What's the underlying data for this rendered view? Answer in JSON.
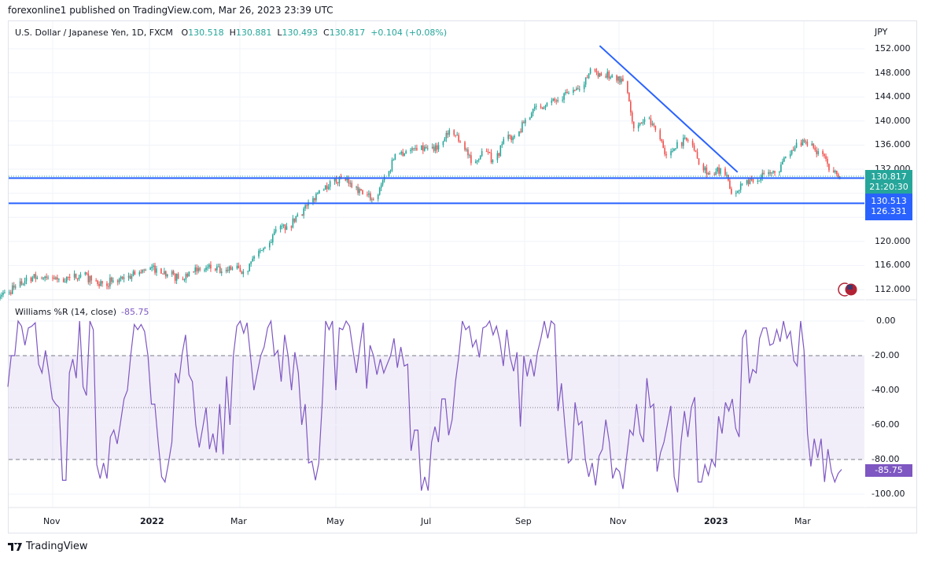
{
  "header": {
    "published": "forexonline1 published on TradingView.com, Mar 26, 2023 23:39 UTC"
  },
  "legend": {
    "symbol": "U.S. Dollar / Japanese Yen, 1D, FXCM",
    "o_label": "O",
    "o": "130.518",
    "h_label": "H",
    "h": "130.881",
    "l_label": "L",
    "l": "130.493",
    "c_label": "C",
    "c": "130.817",
    "change": "+0.104 (+0.08%)"
  },
  "price_axis": {
    "currency": "JPY",
    "ticks": [
      "152.000",
      "148.000",
      "144.000",
      "140.000",
      "136.000",
      "132.000",
      "120.000",
      "116.000",
      "112.000"
    ]
  },
  "tags": {
    "last_price": "130.817",
    "countdown": "21:20:30",
    "line1": "130.513",
    "line2": "126.331"
  },
  "indicator": {
    "name": "Williams %R (14, close)",
    "value": "-85.75",
    "ticks": [
      "0.00",
      "-20.00",
      "-40.00",
      "-60.00",
      "-80.00",
      "-100.00"
    ]
  },
  "time_axis": [
    "Nov",
    "2022",
    "Mar",
    "May",
    "Jul",
    "Sep",
    "Nov",
    "2023",
    "Mar"
  ],
  "footer": {
    "brand": "TradingView"
  },
  "colors": {
    "up": "#26a69a",
    "down": "#ef5350",
    "lines": "#2962ff",
    "indicator": "#7e57c2"
  },
  "chart_data": [
    {
      "type": "candlestick",
      "title": "U.S. Dollar / Japanese Yen, 1D, FXCM",
      "ylabel": "JPY",
      "ylim": [
        110,
        154
      ],
      "horizontal_lines": [
        130.513,
        126.331
      ],
      "trendline": {
        "from": [
          "2022-10-20",
          152.5
        ],
        "to": [
          "2023-01-17",
          131.5
        ]
      },
      "weekly_close": {
        "dates": [
          "2021-10-01",
          "2021-10-08",
          "2021-10-15",
          "2021-10-22",
          "2021-10-29",
          "2021-11-05",
          "2021-11-12",
          "2021-11-19",
          "2021-11-26",
          "2021-12-03",
          "2021-12-10",
          "2021-12-17",
          "2021-12-24",
          "2021-12-31",
          "2022-01-07",
          "2022-01-14",
          "2022-01-21",
          "2022-01-28",
          "2022-02-04",
          "2022-02-11",
          "2022-02-18",
          "2022-02-25",
          "2022-03-04",
          "2022-03-11",
          "2022-03-18",
          "2022-03-25",
          "2022-04-01",
          "2022-04-08",
          "2022-04-15",
          "2022-04-22",
          "2022-04-29",
          "2022-05-06",
          "2022-05-13",
          "2022-05-20",
          "2022-05-27",
          "2022-06-03",
          "2022-06-10",
          "2022-06-17",
          "2022-06-24",
          "2022-07-01",
          "2022-07-08",
          "2022-07-15",
          "2022-07-22",
          "2022-07-29",
          "2022-08-05",
          "2022-08-12",
          "2022-08-19",
          "2022-08-26",
          "2022-09-02",
          "2022-09-09",
          "2022-09-16",
          "2022-09-23",
          "2022-09-30",
          "2022-10-07",
          "2022-10-14",
          "2022-10-21",
          "2022-10-28",
          "2022-11-04",
          "2022-11-11",
          "2022-11-18",
          "2022-11-25",
          "2022-12-02",
          "2022-12-09",
          "2022-12-16",
          "2022-12-23",
          "2022-12-30",
          "2023-01-06",
          "2023-01-13",
          "2023-01-20",
          "2023-01-27",
          "2023-02-03",
          "2023-02-10",
          "2023-02-17",
          "2023-02-24",
          "2023-03-03",
          "2023-03-10",
          "2023-03-17",
          "2023-03-24"
        ],
        "values": [
          111.5,
          112.5,
          114,
          114,
          114,
          113.8,
          114,
          114.5,
          113.5,
          113,
          113.5,
          114,
          114.5,
          115.3,
          115.5,
          114.5,
          113.8,
          115,
          115.2,
          115.5,
          115,
          115.5,
          115,
          117.5,
          119,
          122,
          122.5,
          124.5,
          126.5,
          128.5,
          130,
          130.5,
          129,
          127.8,
          127,
          130.8,
          134.5,
          135,
          135.2,
          135.5,
          136,
          138.5,
          136.5,
          133,
          135,
          133.5,
          137,
          137.5,
          140.2,
          142.5,
          143,
          143.5,
          144.7,
          145.3,
          148.7,
          147.5,
          147.6,
          146.6,
          138.8,
          140.3,
          138.5,
          134.3,
          136.5,
          136.7,
          132.8,
          131.1,
          132.1,
          127.9,
          129.6,
          129.9,
          131.2,
          131.4,
          134.1,
          136.4,
          135.9,
          135,
          131.8,
          130.817
        ]
      }
    },
    {
      "type": "line",
      "title": "Williams %R (14, close)",
      "ylim": [
        -100,
        0
      ],
      "bands": [
        -20,
        -50,
        -80
      ],
      "values": [
        -38,
        -20,
        -20,
        0,
        -3,
        -14,
        -4,
        -3,
        -1,
        -25,
        -30,
        -17,
        -30,
        -45,
        -48,
        -50,
        -92,
        -92,
        -30,
        -22,
        -33,
        0,
        -38,
        -43,
        0,
        -5,
        -83,
        -91,
        -82,
        -91,
        -67,
        -63,
        -71,
        -58,
        -45,
        -40,
        -19,
        -2,
        -5,
        -2,
        -6,
        -20,
        -48,
        -48,
        -70,
        -90,
        -93,
        -82,
        -70,
        -30,
        -36,
        -19,
        -8,
        -31,
        -35,
        -60,
        -73,
        -62,
        -50,
        -74,
        -65,
        -76,
        -48,
        -77,
        -32,
        -60,
        -20,
        -3,
        0,
        -7,
        -1,
        -20,
        -40,
        -30,
        -20,
        -15,
        -4,
        0,
        -20,
        -17,
        -35,
        -8,
        -20,
        -40,
        -18,
        -30,
        -60,
        -48,
        -82,
        -81,
        -92,
        -82,
        -47,
        0,
        -5,
        0,
        -40,
        -4,
        -5,
        0,
        -3,
        -17,
        -30,
        -15,
        -1,
        -39,
        -14,
        -20,
        -31,
        -22,
        -30,
        -25,
        -20,
        -10,
        -27,
        -15,
        -26,
        -25,
        -75,
        -63,
        -63,
        -98,
        -90,
        -98,
        -70,
        -61,
        -70,
        -45,
        -45,
        -66,
        -57,
        -35,
        -20,
        0,
        -5,
        -3,
        -15,
        -11,
        -21,
        -4,
        -3,
        0,
        -8,
        -3,
        -12,
        -26,
        -5,
        -21,
        -29,
        -18,
        -61,
        -20,
        -32,
        -22,
        -32,
        -18,
        -10,
        0,
        -10,
        0,
        -2,
        -52,
        -36,
        -60,
        -82,
        -80,
        -47,
        -60,
        -58,
        -80,
        -90,
        -82,
        -95,
        -78,
        -74,
        -57,
        -70,
        -91,
        -85,
        -87,
        -97,
        -80,
        -63,
        -66,
        -48,
        -65,
        -70,
        -33,
        -50,
        -48,
        -87,
        -76,
        -70,
        -60,
        -49,
        -90,
        -99,
        -70,
        -52,
        -67,
        -50,
        -44,
        -93,
        -93,
        -83,
        -89,
        -80,
        -84,
        -55,
        -65,
        -47,
        -52,
        -45,
        -62,
        -67,
        -10,
        -5,
        -36,
        -28,
        -30,
        -10,
        -4,
        -4,
        -14,
        -13,
        -5,
        -12,
        0,
        -10,
        -6,
        -23,
        -26,
        0,
        -17,
        -65,
        -84,
        -68,
        -79,
        -68,
        -93,
        -74,
        -87,
        -93,
        -88,
        -85.75
      ]
    }
  ]
}
